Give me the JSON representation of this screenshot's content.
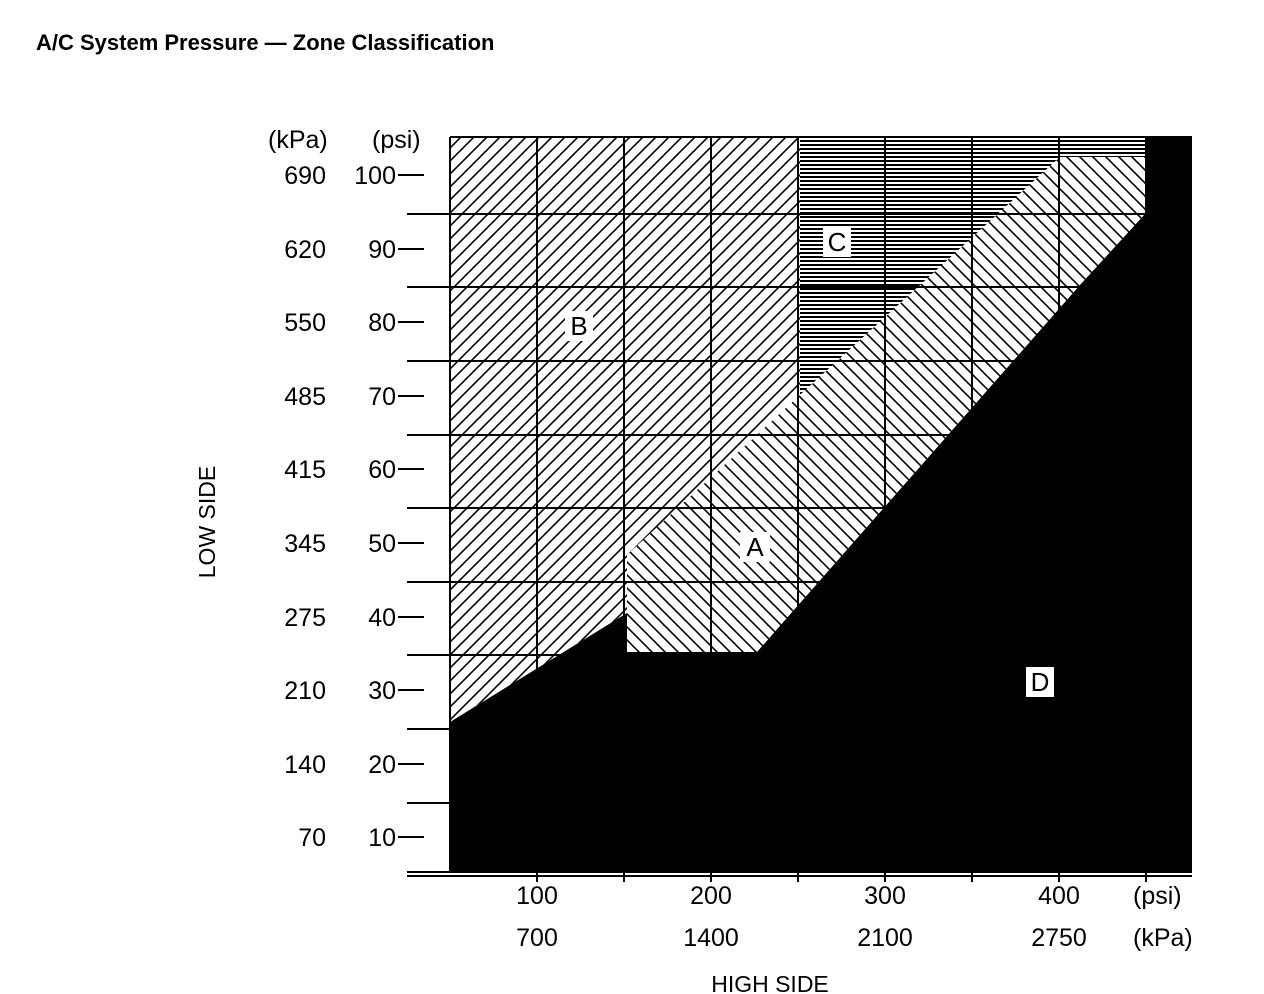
{
  "figure": {
    "title": "A/C System Pressure — Zone Classification"
  },
  "axes": {
    "x_title": "HIGH SIDE",
    "y_title": "LOW SIDE",
    "x_unit_psi": "(psi)",
    "x_unit_kpa": "(kPa)",
    "y_unit_kpa": "(kPa)",
    "y_unit_psi": "(psi)",
    "x_ticks": [
      {
        "psi": "100",
        "kpa": "700"
      },
      {
        "psi": "200",
        "kpa": "1400"
      },
      {
        "psi": "300",
        "kpa": "2100"
      },
      {
        "psi": "400",
        "kpa": "2750"
      }
    ],
    "y_ticks": [
      {
        "kpa": "690",
        "psi": "100"
      },
      {
        "kpa": "620",
        "psi": "90"
      },
      {
        "kpa": "550",
        "psi": "80"
      },
      {
        "kpa": "485",
        "psi": "70"
      },
      {
        "kpa": "415",
        "psi": "60"
      },
      {
        "kpa": "345",
        "psi": "50"
      },
      {
        "kpa": "275",
        "psi": "40"
      },
      {
        "kpa": "210",
        "psi": "30"
      },
      {
        "kpa": "140",
        "psi": "20"
      },
      {
        "kpa": "70",
        "psi": "10"
      }
    ]
  },
  "zones": {
    "A": "A",
    "B": "B",
    "C": "C",
    "D": "D"
  }
}
